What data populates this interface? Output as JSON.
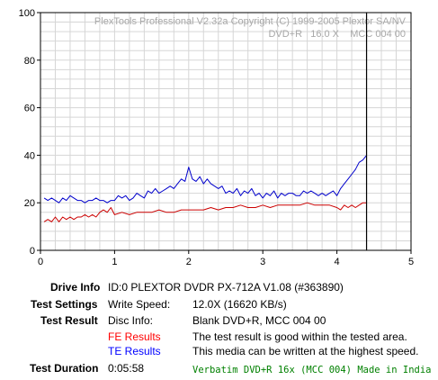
{
  "chart_data": {
    "type": "line",
    "watermark": [
      "PlexTools Professional V2.32a Copyright (C) 1999-2005 Plextor SA/NV",
      "DVD+R   16.0 X    MCC 004 00"
    ],
    "xlim": [
      0,
      5
    ],
    "ylim": [
      0,
      100
    ],
    "x_ticks": [
      0,
      1,
      2,
      3,
      4,
      5
    ],
    "y_ticks": [
      0,
      20,
      40,
      60,
      80,
      100
    ],
    "grid": true,
    "marker_x": 4.4,
    "colors": {
      "te": "#0000cc",
      "fe": "#cc0000",
      "marker": "#000000",
      "grid": "#d6d6d6"
    },
    "series": [
      {
        "key": "te",
        "x": [
          0.05,
          0.1,
          0.15,
          0.2,
          0.25,
          0.3,
          0.35,
          0.4,
          0.45,
          0.5,
          0.55,
          0.6,
          0.65,
          0.7,
          0.75,
          0.8,
          0.85,
          0.9,
          0.95,
          1.0,
          1.05,
          1.1,
          1.15,
          1.2,
          1.25,
          1.3,
          1.35,
          1.4,
          1.45,
          1.5,
          1.55,
          1.6,
          1.65,
          1.7,
          1.75,
          1.8,
          1.85,
          1.9,
          1.95,
          2.0,
          2.05,
          2.1,
          2.15,
          2.2,
          2.25,
          2.3,
          2.35,
          2.4,
          2.45,
          2.5,
          2.55,
          2.6,
          2.65,
          2.7,
          2.75,
          2.8,
          2.85,
          2.9,
          2.95,
          3.0,
          3.05,
          3.1,
          3.15,
          3.2,
          3.25,
          3.3,
          3.35,
          3.4,
          3.45,
          3.5,
          3.55,
          3.6,
          3.65,
          3.7,
          3.75,
          3.8,
          3.85,
          3.9,
          3.95,
          4.0,
          4.05,
          4.1,
          4.15,
          4.2,
          4.25,
          4.3,
          4.35,
          4.4
        ],
        "values": [
          22,
          21,
          22,
          21,
          20,
          22,
          21,
          23,
          22,
          21,
          21,
          20,
          21,
          21,
          22,
          21,
          21,
          20,
          21,
          21,
          23,
          22,
          23,
          21,
          22,
          24,
          23,
          22,
          25,
          24,
          26,
          24,
          25,
          26,
          27,
          26,
          28,
          30,
          29,
          35,
          30,
          29,
          31,
          28,
          30,
          28,
          27,
          26,
          27,
          24,
          25,
          24,
          26,
          23,
          25,
          24,
          26,
          23,
          24,
          22,
          24,
          23,
          25,
          22,
          24,
          23,
          24,
          24,
          23,
          23,
          25,
          24,
          25,
          24,
          23,
          24,
          23,
          24,
          25,
          23,
          26,
          28,
          30,
          32,
          34,
          37,
          38,
          40
        ]
      },
      {
        "key": "fe",
        "x": [
          0.05,
          0.1,
          0.15,
          0.2,
          0.25,
          0.3,
          0.35,
          0.4,
          0.45,
          0.5,
          0.55,
          0.6,
          0.65,
          0.7,
          0.75,
          0.8,
          0.85,
          0.9,
          0.95,
          1.0,
          1.1,
          1.2,
          1.3,
          1.4,
          1.5,
          1.6,
          1.7,
          1.8,
          1.9,
          2.0,
          2.1,
          2.2,
          2.3,
          2.4,
          2.5,
          2.6,
          2.7,
          2.8,
          2.9,
          3.0,
          3.1,
          3.2,
          3.3,
          3.4,
          3.5,
          3.6,
          3.7,
          3.8,
          3.9,
          4.0,
          4.05,
          4.1,
          4.15,
          4.2,
          4.25,
          4.3,
          4.35,
          4.4
        ],
        "values": [
          12,
          13,
          12,
          14,
          12,
          14,
          13,
          14,
          13,
          14,
          14,
          15,
          14,
          15,
          14,
          16,
          17,
          16,
          18,
          15,
          16,
          15,
          16,
          16,
          16,
          17,
          16,
          16,
          17,
          17,
          17,
          17,
          18,
          17,
          18,
          18,
          19,
          18,
          18,
          19,
          18,
          19,
          19,
          19,
          19,
          20,
          19,
          19,
          19,
          18,
          17,
          19,
          18,
          19,
          18,
          19,
          20,
          20
        ]
      }
    ]
  },
  "info": {
    "drive_info_label": "Drive Info",
    "drive_info_value": "ID:0 PLEXTOR DVDR PX-712A V1.08 (#363890)",
    "test_settings_label": "Test Settings",
    "write_speed_label": "Write Speed:",
    "write_speed_value": "12.0X (16620 KB/s)",
    "test_result_label": "Test Result",
    "disc_info_label": "Disc Info:",
    "disc_info_value": "Blank DVD+R, MCC 004 00",
    "fe_results_label": "FE Results",
    "fe_results_value": "The test result is good within the tested area.",
    "te_results_label": "TE Results",
    "te_results_value": "This media can be written at the highest speed.",
    "test_duration_label": "Test Duration",
    "test_duration_value": "0:05:58",
    "media_note": "Verbatim DVD+R 16x (MCC 004) Made in India",
    "colors": {
      "fe": "#ff0000",
      "te": "#0000ff",
      "media_note": "#008000"
    }
  }
}
